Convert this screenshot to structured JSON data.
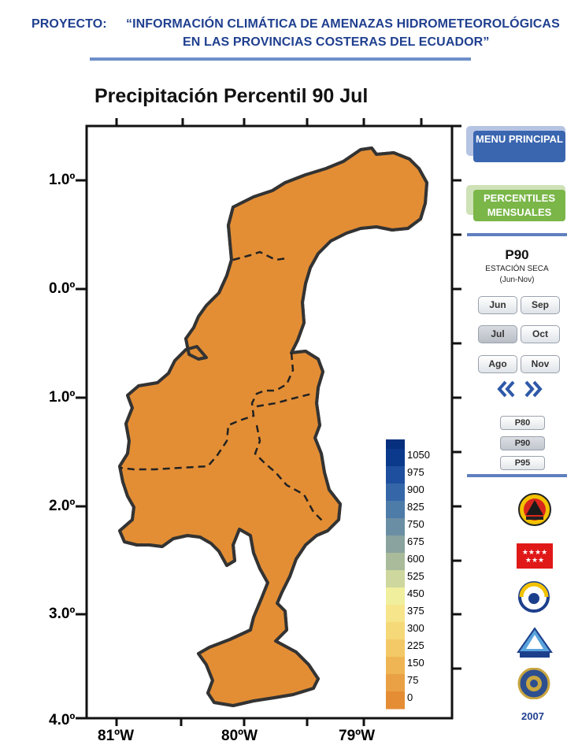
{
  "header": {
    "label": "PROYECTO:",
    "title_line1": "“INFORMACIÓN CLIMÁTICA DE AMENAZAS HIDROMETEOROLÓGICAS",
    "title_line2": "EN LAS PROVINCIAS COSTERAS DEL ECUADOR”"
  },
  "map": {
    "title": "Precipitación Percentil 90 Jul",
    "lat_labels": [
      "1.0º",
      "0.0º",
      "1.0º",
      "2.0º",
      "3.0º",
      "4.0º"
    ],
    "lon_labels": [
      "81ºW",
      "80ºW",
      "79ºW"
    ],
    "legend": {
      "values": [
        "1050",
        "975",
        "900",
        "825",
        "750",
        "675",
        "600",
        "525",
        "450",
        "375",
        "300",
        "225",
        "150",
        "75",
        "0"
      ],
      "colors": [
        "#0b3a8c",
        "#1e4f9e",
        "#3566a8",
        "#4e7ca9",
        "#6a8ea4",
        "#8aa39e",
        "#a9bb9a",
        "#cdd79e",
        "#f0ef9e",
        "#f7e58c",
        "#f5d878",
        "#f3c866",
        "#efb555",
        "#eaa146",
        "#e48d34"
      ]
    },
    "region_colors": {
      "base": "#e38e35",
      "mid": "#eeac48",
      "light": "#f4c35a",
      "lightest": "#f6d472"
    }
  },
  "sidebar": {
    "menu_button": "MENU PRINCIPAL",
    "percentiles_button": "PERCENTILES MENSUALES",
    "percentile_title": "P90",
    "season_label": "ESTACIÓN SECA",
    "season_range": "(Jun-Nov)",
    "months": [
      "Jun",
      "Sep",
      "Jul",
      "Oct",
      "Ago",
      "Nov"
    ],
    "selected_month": "Jul",
    "percentiles": [
      "P80",
      "P90",
      "P95"
    ],
    "selected_percentile": "P90",
    "year": "2007"
  }
}
